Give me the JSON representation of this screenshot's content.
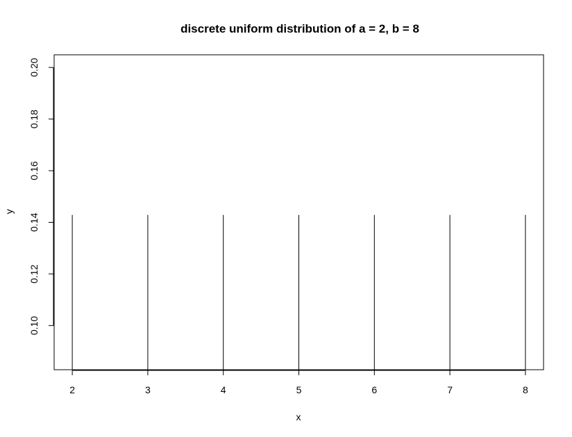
{
  "chart_data": {
    "type": "bar",
    "title": "discrete uniform distribution of a = 2, b = 8",
    "xlabel": "x",
    "ylabel": "y",
    "x": [
      2,
      3,
      4,
      5,
      6,
      7,
      8
    ],
    "values": [
      0.142857,
      0.142857,
      0.142857,
      0.142857,
      0.142857,
      0.142857,
      0.142857
    ],
    "xlim": [
      1.76,
      8.24
    ],
    "ylim": [
      0.0829,
      0.2049
    ],
    "x_ticks": [
      "2",
      "3",
      "4",
      "5",
      "6",
      "7",
      "8"
    ],
    "y_ticks": [
      "0.10",
      "0.12",
      "0.14",
      "0.16",
      "0.18",
      "0.20"
    ],
    "grid": false,
    "legend": "none",
    "color": "#000000"
  }
}
